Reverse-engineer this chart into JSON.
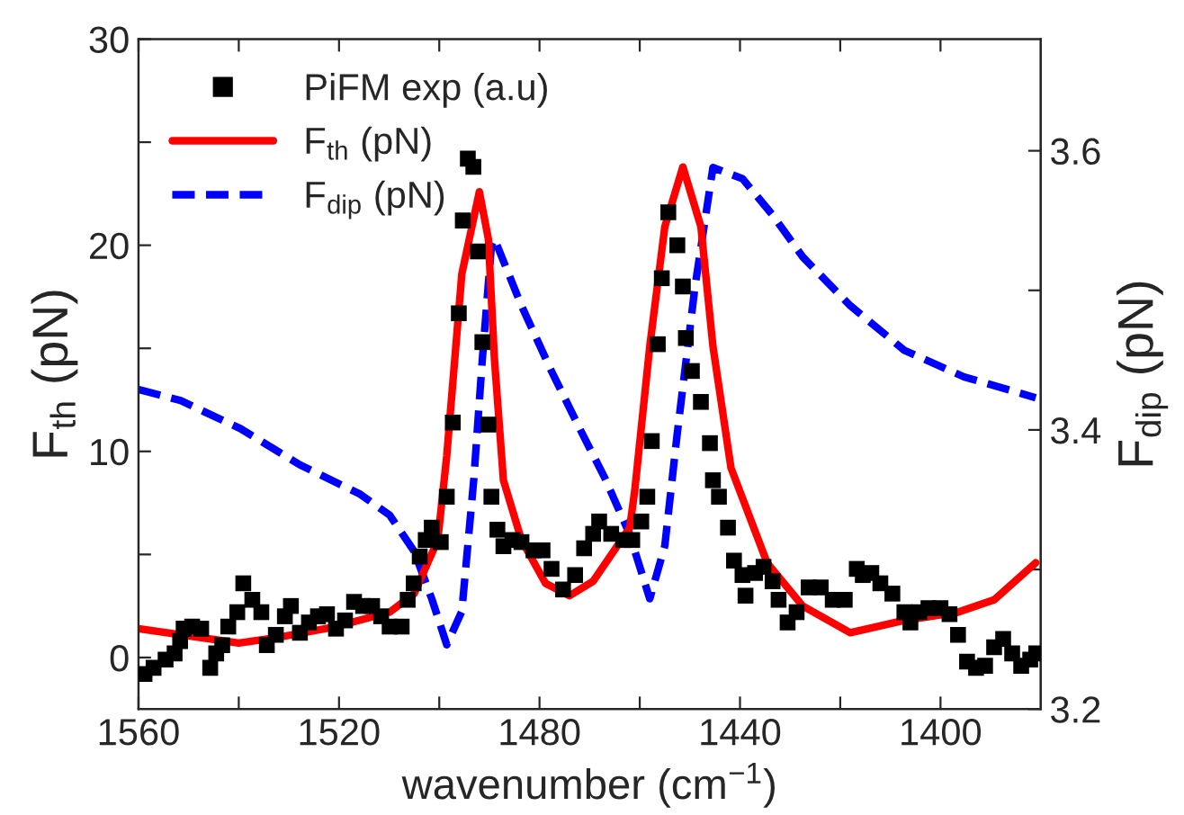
{
  "chart_data": {
    "type": "line",
    "xlabel": "wavenumber (cm$^{−1}$)",
    "ylabel": "F$_{th}$ (pN)",
    "y2label": "F$_{dip}$ (pN)",
    "xlim": [
      1560,
      1380
    ],
    "xticks": [
      1560,
      {
        "value": 1540,
        "label": null
      },
      1520,
      {
        "value": 1500,
        "label": null
      },
      1480,
      {
        "value": 1460,
        "label": null
      },
      1440,
      {
        "value": 1420,
        "label": null
      },
      1400
    ],
    "ylim": [
      -2.5,
      30
    ],
    "yticks": [
      0,
      {
        "value": 5,
        "label": null
      },
      10,
      {
        "value": 15,
        "label": null
      },
      20,
      {
        "value": 25,
        "label": null
      },
      30
    ],
    "y2lim": [
      3.2,
      3.68
    ],
    "y2ticks": [
      3.2,
      {
        "value": 3.3,
        "label": null
      },
      3.4,
      {
        "value": 3.5,
        "label": null
      },
      3.6
    ],
    "grid": false,
    "legend": "top left",
    "series": [
      {
        "name": "PiFM exp (a.u)",
        "type": "scatter",
        "marker": "square",
        "color": "#000000",
        "x": [
          1558.8,
          1557.0,
          1554.6,
          1552.8,
          1551.7,
          1551.0,
          1549.3,
          1547.5,
          1545.7,
          1544.5,
          1543.3,
          1542.1,
          1540.3,
          1539.1,
          1537.3,
          1535.5,
          1534.4,
          1532.6,
          1530.8,
          1529.6,
          1527.8,
          1526.0,
          1524.2,
          1522.4,
          1520.6,
          1518.8,
          1517.0,
          1515.2,
          1513.4,
          1511.6,
          1509.9,
          1507.5,
          1506.3,
          1505.1,
          1503.9,
          1502.7,
          1501.5,
          1499.7,
          1498.5,
          1497.3,
          1496.1,
          1495.3,
          1494.3,
          1493.2,
          1492.3,
          1491.4,
          1490.2,
          1489.6,
          1488.4,
          1487.2,
          1485.4,
          1483.6,
          1481.2,
          1479.4,
          1477.6,
          1475.3,
          1472.9,
          1471.1,
          1469.3,
          1468.1,
          1465.7,
          1463.3,
          1461.5,
          1459.7,
          1458.5,
          1457.6,
          1456.4,
          1455.6,
          1454.3,
          1452.5,
          1451.4,
          1450.8,
          1449.6,
          1447.8,
          1446.0,
          1445.4,
          1444.2,
          1442.4,
          1441.2,
          1439.5,
          1438.9,
          1437.0,
          1435.3,
          1433.5,
          1432.3,
          1430.5,
          1428.7,
          1426.3,
          1423.9,
          1421.5,
          1419.1,
          1416.7,
          1415.5,
          1413.8,
          1412.0,
          1409.6,
          1407.2,
          1406.0,
          1404.2,
          1402.4,
          1400.0,
          1398.2,
          1396.5,
          1394.7,
          1392.9,
          1391.1,
          1389.3,
          1387.5,
          1385.7,
          1383.9,
          1382.1,
          1380.9
        ],
        "values": [
          -0.8,
          -0.5,
          -0.1,
          0.2,
          0.8,
          1.4,
          1.5,
          1.4,
          -0.5,
          0.2,
          0.6,
          1.5,
          2.2,
          3.6,
          2.8,
          2.2,
          0.6,
          1.1,
          2.0,
          2.5,
          1.2,
          1.7,
          2.0,
          2.1,
          1.4,
          1.8,
          2.7,
          2.5,
          2.5,
          2.0,
          1.5,
          1.5,
          2.8,
          3.6,
          4.9,
          5.7,
          6.3,
          5.6,
          7.8,
          11.4,
          16.7,
          21.2,
          24.2,
          23.8,
          19.7,
          15.3,
          11.3,
          7.8,
          6.2,
          5.4,
          5.7,
          5.6,
          5.2,
          5.2,
          4.3,
          3.3,
          4.0,
          5.3,
          6.0,
          6.6,
          6.0,
          5.7,
          5.7,
          6.6,
          7.8,
          10.5,
          15.2,
          18.4,
          21.6,
          20.0,
          18.0,
          15.5,
          13.9,
          12.4,
          10.4,
          8.6,
          7.8,
          6.3,
          4.7,
          4.0,
          3.0,
          4.1,
          4.4,
          3.7,
          2.8,
          1.7,
          2.2,
          3.4,
          3.4,
          2.8,
          2.8,
          4.3,
          4.0,
          4.1,
          3.6,
          3.1,
          2.2,
          1.7,
          2.2,
          2.4,
          2.4,
          2.1,
          1.1,
          -0.2,
          -0.5,
          -0.4,
          0.5,
          0.9,
          0.2,
          -0.4,
          -0.1,
          0.2
        ]
      },
      {
        "name": "F$_{th}$ (pN)",
        "line_style": "solid",
        "color": "#ff0000",
        "x": [
          1560,
          1540,
          1531.6,
          1520.6,
          1509.9,
          1505,
          1500.3,
          1498.5,
          1495.5,
          1492,
          1490.2,
          1489,
          1487.2,
          1483.6,
          1478.8,
          1474,
          1469.3,
          1462,
          1461,
          1458,
          1455,
          1451.4,
          1447.8,
          1445.4,
          1441.8,
          1434.6,
          1427.5,
          1418,
          1407.2,
          1396.5,
          1389.3,
          1381
        ],
        "values": [
          1.4,
          0.7,
          1.0,
          1.5,
          2.2,
          3.1,
          5.7,
          9.8,
          18.6,
          22.6,
          20.3,
          14.5,
          8.6,
          5.7,
          3.6,
          3.0,
          3.7,
          6.3,
          8.1,
          15.1,
          20.9,
          23.8,
          20.9,
          15.1,
          9.2,
          4.6,
          2.5,
          1.2,
          1.8,
          2.2,
          2.8,
          4.6
        ]
      },
      {
        "name": "F$_{dip}$ (pN)",
        "line_style": "dashed",
        "axis": "y2",
        "color": "#0000ff",
        "x": [
          1560,
          1551.6,
          1539.7,
          1527.8,
          1515.8,
          1509.9,
          1505,
          1501.5,
          1498.5,
          1495.5,
          1493.1,
          1491.4,
          1489.6,
          1489,
          1483.6,
          1477.6,
          1471.7,
          1466.9,
          1462.1,
          1458,
          1455,
          1452.6,
          1449,
          1445.4,
          1439.5,
          1433.5,
          1427.5,
          1418,
          1407.2,
          1395.3,
          1381
        ],
        "values": [
          3.429,
          3.421,
          3.401,
          3.375,
          3.354,
          3.339,
          3.313,
          3.279,
          3.246,
          3.27,
          3.365,
          3.451,
          3.532,
          3.537,
          3.489,
          3.442,
          3.399,
          3.365,
          3.326,
          3.279,
          3.317,
          3.395,
          3.502,
          3.588,
          3.58,
          3.554,
          3.524,
          3.489,
          3.457,
          3.438,
          3.423
        ]
      }
    ]
  }
}
